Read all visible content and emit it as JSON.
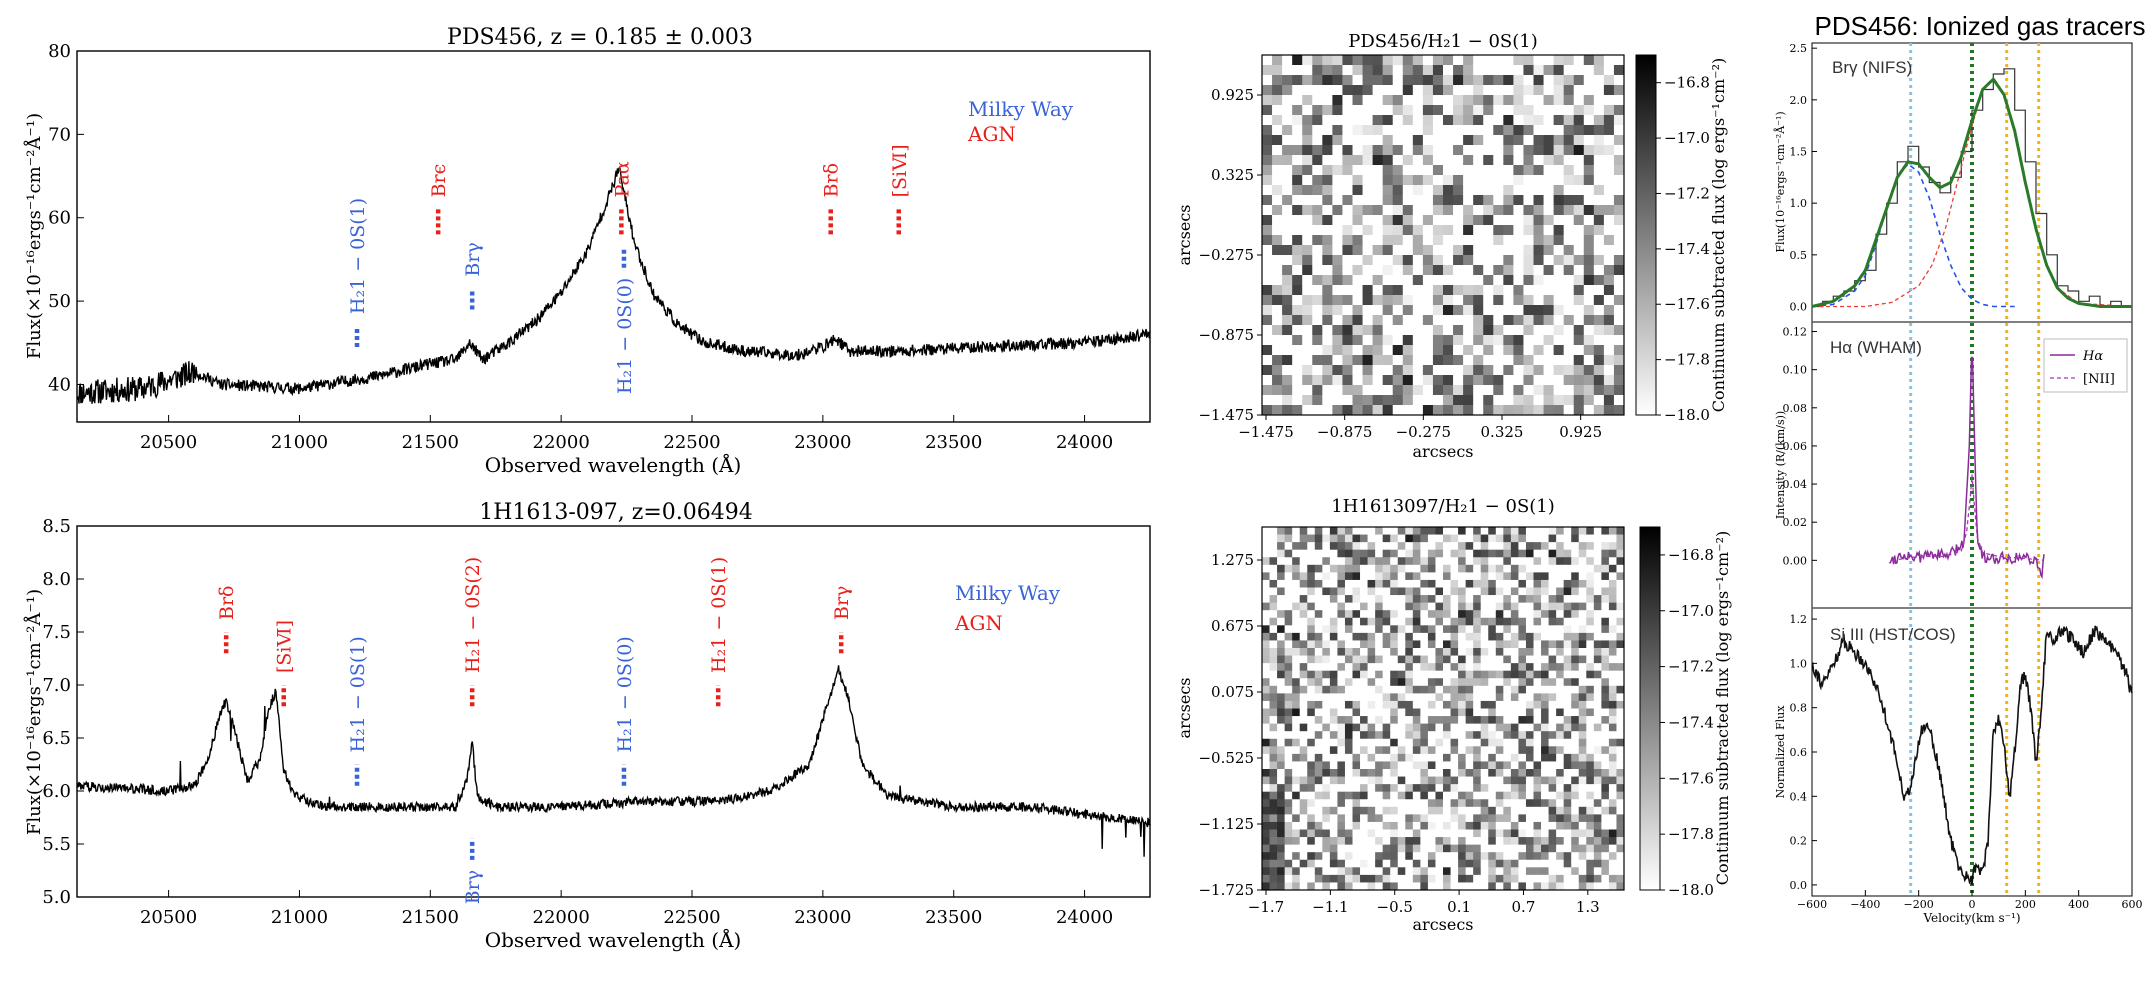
{
  "colors": {
    "red": "#e8201c",
    "blue": "#3a63d8",
    "black": "#000000",
    "green": "#2a7a2a",
    "lightblue": "#87c2e8",
    "darkgreen": "#1f7a1f",
    "gold": "#f2b418",
    "purple": "#8a2a9a"
  },
  "chart_data": [
    {
      "id": "spec1",
      "type": "line",
      "title": "PDS456, z = 0.185 ± 0.003",
      "xlabel": "Observed wavelength (Å)",
      "ylabel": "Flux(×10⁻¹⁶ergs⁻¹cm⁻²Å⁻¹)",
      "xlim": [
        20150,
        24250
      ],
      "ylim": [
        35.5,
        80
      ],
      "xticks": [
        "20500",
        "21000",
        "21500",
        "22000",
        "22500",
        "23000",
        "23500",
        "24000"
      ],
      "yticks": [
        "40",
        "50",
        "60",
        "70",
        "80"
      ],
      "legend": [
        "Milky Way",
        "AGN"
      ],
      "series": [
        {
          "name": "spectrum",
          "x": [
            20150,
            20400,
            20500,
            20600,
            20700,
            21000,
            21300,
            21500,
            21600,
            21650,
            21700,
            21800,
            21900,
            22000,
            22100,
            22150,
            22200,
            22220,
            22240,
            22280,
            22350,
            22450,
            22550,
            22700,
            22900,
            23000,
            23050,
            23100,
            23300,
            23600,
            24000,
            24250
          ],
          "y": [
            39,
            39.5,
            40.5,
            41.5,
            40,
            39.5,
            41,
            42.5,
            43,
            45,
            43,
            45,
            47.5,
            51,
            56,
            60,
            64,
            66,
            63,
            57,
            51,
            47,
            45,
            44,
            43.5,
            44.5,
            45.5,
            44,
            44,
            44.5,
            45,
            46
          ]
        }
      ],
      "annotations": [
        {
          "label": "H₂1 − 0S(1)",
          "x": 21220,
          "color": "blue",
          "ymarks": [
            44.5,
            47
          ]
        },
        {
          "label": "Brϵ",
          "x": 21530,
          "color": "red",
          "ymarks": [
            58,
            61
          ]
        },
        {
          "label": "Brγ",
          "x": 21660,
          "color": "blue",
          "ymarks": [
            49,
            51.5
          ]
        },
        {
          "label": "Paα",
          "x": 22230,
          "color": "red",
          "ymarks": [
            58,
            61
          ]
        },
        {
          "label": "H₂1 − 0S(0)",
          "x": 22240,
          "color": "blue",
          "ymarks": [
            54,
            56.5
          ]
        },
        {
          "label": "Brδ",
          "x": 23030,
          "color": "red",
          "ymarks": [
            58,
            61
          ]
        },
        {
          "label": "[SiⅥ]",
          "x": 23290,
          "color": "red",
          "ymarks": [
            58,
            61
          ]
        }
      ]
    },
    {
      "id": "spec2",
      "type": "line",
      "title": "1H1613-097, z=0.06494",
      "xlabel": "Observed wavelength (Å)",
      "ylabel": "Flux(×10⁻¹⁶ergs⁻¹cm⁻²Å⁻¹)",
      "xlim": [
        20150,
        24250
      ],
      "ylim": [
        5.0,
        8.5
      ],
      "xticks": [
        "20500",
        "21000",
        "21500",
        "22000",
        "22500",
        "23000",
        "23500",
        "24000"
      ],
      "yticks": [
        "5.0",
        "5.5",
        "6.0",
        "6.5",
        "7.0",
        "7.5",
        "8.0",
        "8.5"
      ],
      "legend": [
        "Milky Way",
        "AGN"
      ],
      "series": [
        {
          "name": "spectrum",
          "x": [
            20150,
            20500,
            20600,
            20650,
            20700,
            20720,
            20760,
            20800,
            20850,
            20880,
            20910,
            20940,
            20980,
            21100,
            21300,
            21600,
            21640,
            21660,
            21680,
            21750,
            22000,
            22300,
            22600,
            22800,
            22950,
            23020,
            23060,
            23100,
            23150,
            23250,
            23500,
            23800,
            24100,
            24250
          ],
          "y": [
            6.05,
            6.0,
            6.05,
            6.3,
            6.75,
            6.85,
            6.5,
            6.1,
            6.3,
            6.75,
            6.95,
            6.2,
            5.95,
            5.85,
            5.85,
            5.85,
            6.1,
            6.45,
            5.95,
            5.85,
            5.85,
            5.9,
            5.9,
            6.0,
            6.25,
            6.85,
            7.15,
            6.85,
            6.25,
            5.95,
            5.85,
            5.85,
            5.75,
            5.7
          ]
        }
      ],
      "annotations": [
        {
          "label": "Brδ",
          "x": 20720,
          "color": "red",
          "ymarks": [
            7.3,
            7.5
          ]
        },
        {
          "label": "[SiⅥ]",
          "x": 20940,
          "color": "red",
          "ymarks": [
            6.8,
            7.0
          ]
        },
        {
          "label": "H₂1 − 0S(1)",
          "x": 21220,
          "color": "blue",
          "ymarks": [
            6.05,
            6.25
          ]
        },
        {
          "label": "H₂1 − 0S(2)",
          "x": 21660,
          "color": "red",
          "ymarks": [
            6.8,
            7.0
          ]
        },
        {
          "label": "Brγ",
          "x": 21660,
          "color": "blue",
          "ymarks": [
            5.35,
            5.55
          ]
        },
        {
          "label": "H₂1 − 0S(0)",
          "x": 22240,
          "color": "blue",
          "ymarks": [
            6.05,
            6.25
          ]
        },
        {
          "label": "H₂1 − 0S(1)",
          "x": 22600,
          "color": "red",
          "ymarks": [
            6.8,
            7.0
          ]
        },
        {
          "label": "Brγ",
          "x": 23070,
          "color": "red",
          "ymarks": [
            7.3,
            7.5
          ]
        }
      ]
    },
    {
      "id": "map1",
      "type": "heatmap",
      "title": "PDS456/H₂1 − 0S(1)",
      "xlabel": "arcsecs",
      "ylabel": "arcsecs",
      "xticks": [
        "−1.475",
        "−0.875",
        "−0.275",
        "0.325",
        "0.925"
      ],
      "yticks": [
        "0.925",
        "0.325",
        "−0.275",
        "−0.875",
        "−1.475"
      ],
      "colorbar_label": "Continuum subtracted flux (log ergs⁻¹cm⁻²)",
      "colorbar_ticks": [
        "−16.8",
        "−17.0",
        "−17.2",
        "−17.4",
        "−17.6",
        "−17.8",
        "−18.0"
      ],
      "range": [
        -18.0,
        -16.7
      ],
      "grid_size": [
        36,
        36
      ],
      "seed": 7
    },
    {
      "id": "map2",
      "type": "heatmap",
      "title": "1H1613097/H₂1 − 0S(1)",
      "xlabel": "arcsecs",
      "ylabel": "arcsecs",
      "xticks": [
        "−1.7",
        "−1.1",
        "−0.5",
        "0.1",
        "0.7",
        "1.3"
      ],
      "yticks": [
        "1.275",
        "0.675",
        "0.075",
        "−0.525",
        "−1.125",
        "−1.725"
      ],
      "colorbar_label": "Continuum subtracted flux (log ergs⁻¹cm⁻²)",
      "colorbar_ticks": [
        "−16.8",
        "−17.0",
        "−17.2",
        "−17.4",
        "−17.6",
        "−17.8",
        "−18.0"
      ],
      "range": [
        -18.0,
        -16.7
      ],
      "grid_size": [
        48,
        48
      ],
      "seed": 23
    },
    {
      "id": "vel1",
      "type": "line",
      "panel_label": "Brγ (NIFS)",
      "ylabel": "Flux(10⁻¹⁶ergs⁻¹cm⁻²Å⁻¹)",
      "xlim": [
        -600,
        600
      ],
      "ylim": [
        -0.15,
        2.55
      ],
      "yticks": [
        "0.0",
        "0.5",
        "1.0",
        "1.5",
        "2.0",
        "2.5"
      ],
      "series": [
        {
          "name": "data",
          "x": [
            -600,
            -560,
            -520,
            -480,
            -440,
            -400,
            -360,
            -320,
            -280,
            -240,
            -200,
            -160,
            -120,
            -80,
            -40,
            0,
            40,
            80,
            120,
            160,
            200,
            240,
            280,
            320,
            360,
            400,
            440,
            480,
            520,
            560,
            600
          ],
          "y": [
            0.0,
            0.05,
            0.1,
            0.15,
            0.25,
            0.35,
            0.7,
            1.0,
            1.4,
            1.55,
            1.35,
            1.2,
            1.1,
            1.25,
            1.5,
            1.9,
            2.1,
            2.25,
            2.3,
            1.9,
            1.4,
            0.9,
            0.5,
            0.2,
            0.15,
            0.05,
            0.1,
            0.0,
            0.05,
            0.0,
            0.0
          ]
        },
        {
          "name": "total fit",
          "x": [
            -600,
            -520,
            -440,
            -400,
            -360,
            -320,
            -280,
            -240,
            -200,
            -160,
            -120,
            -80,
            -40,
            0,
            40,
            80,
            120,
            160,
            200,
            240,
            280,
            320,
            360,
            400,
            480,
            600
          ],
          "y": [
            0.0,
            0.05,
            0.2,
            0.35,
            0.65,
            0.95,
            1.25,
            1.4,
            1.38,
            1.25,
            1.15,
            1.2,
            1.45,
            1.8,
            2.1,
            2.2,
            2.05,
            1.7,
            1.2,
            0.75,
            0.4,
            0.18,
            0.08,
            0.03,
            0.0,
            0.0
          ]
        },
        {
          "name": "component 1",
          "x": [
            -600,
            -520,
            -440,
            -400,
            -360,
            -320,
            -280,
            -240,
            -200,
            -160,
            -120,
            -80,
            -40,
            0,
            40,
            80,
            160
          ],
          "y": [
            0.0,
            0.02,
            0.15,
            0.3,
            0.6,
            0.95,
            1.25,
            1.38,
            1.3,
            1.05,
            0.7,
            0.4,
            0.18,
            0.07,
            0.02,
            0.0,
            0.0
          ]
        },
        {
          "name": "component 2",
          "x": [
            -600,
            -400,
            -300,
            -200,
            -150,
            -100,
            -50,
            0,
            40,
            80,
            120,
            160,
            200,
            240,
            280,
            320,
            400,
            600
          ],
          "y": [
            0.0,
            0.0,
            0.04,
            0.2,
            0.4,
            0.75,
            1.25,
            1.75,
            2.1,
            2.2,
            2.05,
            1.7,
            1.2,
            0.75,
            0.4,
            0.18,
            0.03,
            0.0
          ]
        }
      ]
    },
    {
      "id": "vel2",
      "type": "line",
      "panel_label": "Hα (WHAM)",
      "ylabel": "Intensity (R/(km/s))",
      "xlim": [
        -600,
        600
      ],
      "ylim": [
        -0.025,
        0.125
      ],
      "yticks": [
        "0.00",
        "0.02",
        "0.04",
        "0.06",
        "0.08",
        "0.10",
        "0.12"
      ],
      "legend": [
        "Hα",
        "[NII]"
      ],
      "series": [
        {
          "name": "Hα",
          "x": [
            -310,
            -250,
            -200,
            -150,
            -100,
            -60,
            -30,
            -10,
            0,
            10,
            20,
            40,
            80,
            120,
            160,
            200,
            240,
            260,
            270
          ],
          "y": [
            0.0,
            0.003,
            0.001,
            0.004,
            0.002,
            0.005,
            0.01,
            0.06,
            0.118,
            0.06,
            0.01,
            0.002,
            0.001,
            0.002,
            0.001,
            0.002,
            0.0,
            -0.008,
            0.004
          ]
        },
        {
          "name": "[NII]",
          "x": [
            -300,
            -200,
            -100,
            -40,
            -20,
            -5,
            0,
            5,
            20,
            40,
            100,
            200,
            270
          ],
          "y": [
            0.0,
            0.002,
            0.002,
            0.005,
            0.015,
            0.035,
            0.045,
            0.035,
            0.012,
            0.004,
            0.002,
            0.001,
            0.0
          ]
        }
      ]
    },
    {
      "id": "vel3",
      "type": "line",
      "panel_label": "Si III (HST/COS)",
      "ylabel": "Normalized Flux",
      "xlabel": "Velocity(km s⁻¹)",
      "xlim": [
        -600,
        600
      ],
      "ylim": [
        -0.05,
        1.25
      ],
      "xticks": [
        "−600",
        "−400",
        "−200",
        "0",
        "200",
        "400",
        "600"
      ],
      "yticks": [
        "0.0",
        "0.2",
        "0.4",
        "0.6",
        "0.8",
        "1.0",
        "1.2"
      ],
      "vlines": [
        {
          "x": -230,
          "color": "lightblue"
        },
        {
          "x": 0,
          "color": "darkgreen"
        },
        {
          "x": 130,
          "color": "gold"
        },
        {
          "x": 250,
          "color": "gold"
        }
      ],
      "series": [
        {
          "name": "flux",
          "x": [
            -600,
            -560,
            -520,
            -480,
            -440,
            -400,
            -360,
            -320,
            -280,
            -250,
            -220,
            -190,
            -160,
            -120,
            -80,
            -40,
            0,
            20,
            40,
            60,
            80,
            100,
            120,
            140,
            160,
            180,
            200,
            220,
            240,
            260,
            280,
            300,
            340,
            380,
            420,
            460,
            500,
            540,
            580,
            600
          ],
          "y": [
            1.0,
            0.9,
            1.0,
            1.1,
            1.05,
            1.0,
            0.9,
            0.75,
            0.55,
            0.38,
            0.5,
            0.7,
            0.72,
            0.5,
            0.2,
            0.05,
            0.03,
            0.1,
            0.05,
            0.2,
            0.7,
            0.75,
            0.65,
            0.38,
            0.6,
            0.9,
            0.95,
            0.8,
            0.55,
            0.8,
            1.15,
            1.1,
            1.15,
            1.1,
            1.05,
            1.15,
            1.1,
            1.05,
            0.95,
            0.85
          ]
        }
      ]
    }
  ],
  "figure_title": "PDS456: Ionized gas tracers"
}
